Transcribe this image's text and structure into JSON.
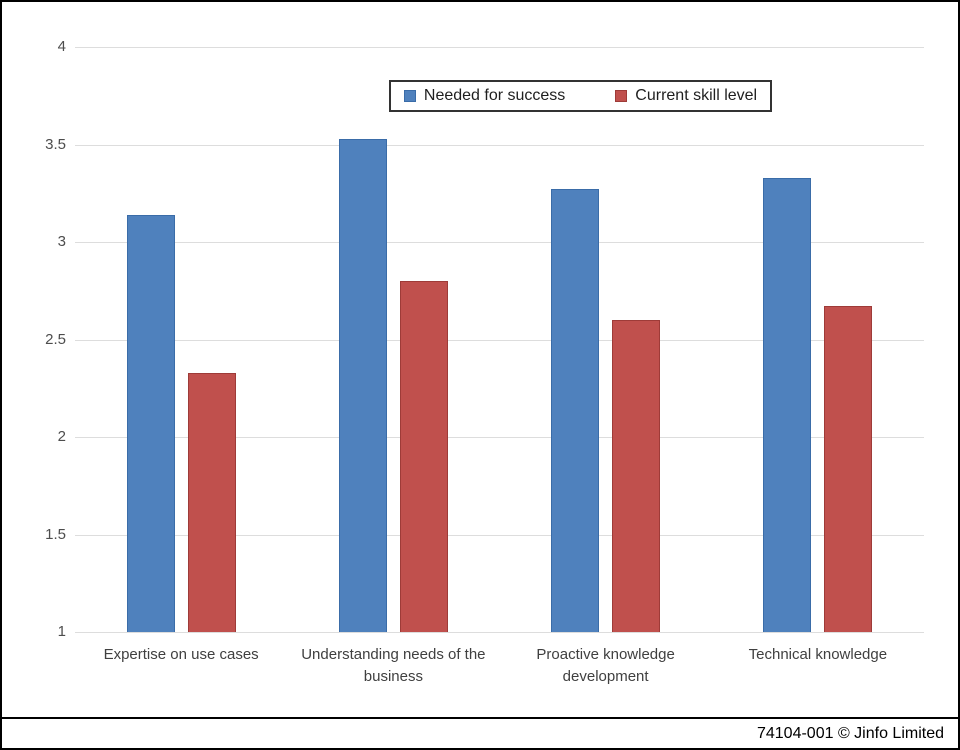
{
  "chart_data": {
    "type": "bar",
    "title": "",
    "categories": [
      "Expertise on use cases",
      "Understanding needs of the business",
      "Proactive knowledge development",
      "Technical knowledge"
    ],
    "series": [
      {
        "name": "Needed for success",
        "values": [
          3.14,
          3.53,
          3.27,
          3.33
        ],
        "color": "#4F81BD",
        "border_color": "#3A6CA8"
      },
      {
        "name": "Current skill level",
        "values": [
          2.33,
          2.8,
          2.6,
          2.67
        ],
        "color": "#C0504D",
        "border_color": "#9E3B38"
      }
    ],
    "xlabel": "",
    "ylabel": "",
    "ylim": [
      1,
      4
    ],
    "yticks": [
      4,
      3.5,
      3,
      2.5,
      2,
      1.5,
      1
    ],
    "grid": "horizontal",
    "gridline_color": "#DDDDDD",
    "axis_text_color": "#4d4d4d",
    "category_text_color": "#404040",
    "legend_position": "top-center"
  },
  "footer": {
    "text": "74104-001 © Jinfo Limited"
  }
}
